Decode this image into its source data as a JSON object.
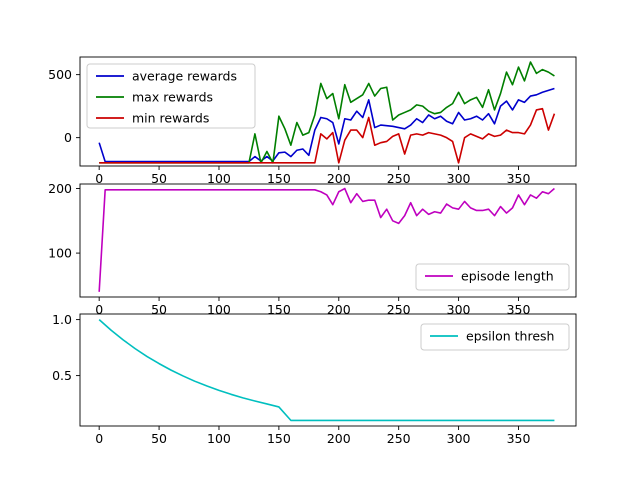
{
  "chart_data": [
    {
      "type": "line",
      "xlim": [
        -16,
        398
      ],
      "ylim": [
        -225,
        640
      ],
      "xticks": [
        0,
        50,
        100,
        150,
        200,
        250,
        300,
        350
      ],
      "yticks": [
        0,
        500
      ],
      "legend_position": "upper-left",
      "series": [
        {
          "name": "average rewards",
          "color": "#0000cc",
          "x": [
            0,
            5,
            10,
            15,
            20,
            25,
            30,
            35,
            40,
            45,
            50,
            55,
            60,
            65,
            70,
            75,
            80,
            85,
            90,
            95,
            100,
            105,
            110,
            115,
            120,
            125,
            130,
            135,
            140,
            145,
            150,
            155,
            160,
            165,
            170,
            175,
            180,
            185,
            190,
            195,
            200,
            205,
            210,
            215,
            220,
            225,
            230,
            235,
            240,
            245,
            250,
            255,
            260,
            265,
            270,
            275,
            280,
            285,
            290,
            295,
            300,
            305,
            310,
            315,
            320,
            325,
            330,
            335,
            340,
            345,
            350,
            355,
            360,
            365,
            370,
            375,
            380
          ],
          "y": [
            -40,
            -190,
            -190,
            -190,
            -190,
            -190,
            -190,
            -190,
            -190,
            -190,
            -190,
            -190,
            -190,
            -190,
            -190,
            -190,
            -190,
            -190,
            -190,
            -190,
            -190,
            -190,
            -190,
            -190,
            -190,
            -190,
            -150,
            -185,
            -150,
            -185,
            -120,
            -115,
            -150,
            -100,
            -90,
            -140,
            60,
            160,
            150,
            120,
            -50,
            150,
            140,
            210,
            160,
            300,
            80,
            100,
            95,
            90,
            80,
            70,
            100,
            150,
            120,
            180,
            150,
            170,
            130,
            110,
            200,
            140,
            150,
            170,
            140,
            190,
            110,
            250,
            290,
            220,
            300,
            280,
            330,
            340,
            360,
            375,
            390
          ]
        },
        {
          "name": "max rewards",
          "color": "#007f00",
          "x": [
            0,
            5,
            10,
            15,
            20,
            25,
            30,
            35,
            40,
            45,
            50,
            55,
            60,
            65,
            70,
            75,
            80,
            85,
            90,
            95,
            100,
            105,
            110,
            115,
            120,
            125,
            130,
            135,
            140,
            145,
            150,
            155,
            160,
            165,
            170,
            175,
            180,
            185,
            190,
            195,
            200,
            205,
            210,
            215,
            220,
            225,
            230,
            235,
            240,
            245,
            250,
            255,
            260,
            265,
            270,
            275,
            280,
            285,
            290,
            295,
            300,
            305,
            310,
            315,
            320,
            325,
            330,
            335,
            340,
            345,
            350,
            355,
            360,
            365,
            370,
            375,
            380
          ],
          "y": [
            -200,
            -200,
            -200,
            -200,
            -200,
            -200,
            -200,
            -200,
            -200,
            -200,
            -200,
            -200,
            -200,
            -200,
            -200,
            -200,
            -200,
            -200,
            -200,
            -200,
            -200,
            -200,
            -200,
            -200,
            -200,
            -200,
            30,
            -200,
            -110,
            -200,
            170,
            70,
            -60,
            120,
            20,
            40,
            180,
            430,
            310,
            350,
            150,
            420,
            280,
            310,
            340,
            430,
            330,
            390,
            400,
            140,
            180,
            200,
            220,
            260,
            250,
            210,
            190,
            200,
            240,
            270,
            360,
            270,
            300,
            320,
            240,
            380,
            220,
            350,
            520,
            420,
            560,
            450,
            600,
            510,
            540,
            520,
            490
          ]
        },
        {
          "name": "min rewards",
          "color": "#cc0000",
          "x": [
            0,
            5,
            10,
            15,
            20,
            25,
            30,
            35,
            40,
            45,
            50,
            55,
            60,
            65,
            70,
            75,
            80,
            85,
            90,
            95,
            100,
            105,
            110,
            115,
            120,
            125,
            130,
            135,
            140,
            145,
            150,
            155,
            160,
            165,
            170,
            175,
            180,
            185,
            190,
            195,
            200,
            205,
            210,
            215,
            220,
            225,
            230,
            235,
            240,
            245,
            250,
            255,
            260,
            265,
            270,
            275,
            280,
            285,
            290,
            295,
            300,
            305,
            310,
            315,
            320,
            325,
            330,
            335,
            340,
            345,
            350,
            355,
            360,
            365,
            370,
            375,
            380
          ],
          "y": [
            -200,
            -200,
            -200,
            -200,
            -200,
            -200,
            -200,
            -200,
            -200,
            -200,
            -200,
            -200,
            -200,
            -200,
            -200,
            -200,
            -200,
            -200,
            -200,
            -200,
            -200,
            -200,
            -200,
            -200,
            -200,
            -200,
            -200,
            -200,
            -200,
            -200,
            -200,
            -200,
            -200,
            -200,
            -200,
            -200,
            -200,
            30,
            -10,
            40,
            -200,
            -20,
            60,
            60,
            0,
            160,
            -60,
            -40,
            -30,
            10,
            30,
            -130,
            20,
            30,
            20,
            40,
            30,
            20,
            0,
            -30,
            -200,
            0,
            30,
            10,
            -10,
            30,
            10,
            20,
            60,
            40,
            40,
            30,
            100,
            220,
            230,
            60,
            190
          ]
        }
      ]
    },
    {
      "type": "line",
      "xlim": [
        -16,
        398
      ],
      "ylim": [
        32,
        207
      ],
      "xticks": [
        0,
        50,
        100,
        150,
        200,
        250,
        300,
        350
      ],
      "yticks": [
        100,
        200
      ],
      "legend_position": "lower-right",
      "series": [
        {
          "name": "episode length",
          "color": "#bf00bf",
          "x": [
            0,
            5,
            10,
            15,
            20,
            25,
            30,
            35,
            40,
            45,
            50,
            55,
            60,
            65,
            70,
            75,
            80,
            85,
            90,
            95,
            100,
            105,
            110,
            115,
            120,
            125,
            130,
            135,
            140,
            145,
            150,
            155,
            160,
            165,
            170,
            175,
            180,
            185,
            190,
            195,
            200,
            205,
            210,
            215,
            220,
            225,
            230,
            235,
            240,
            245,
            250,
            255,
            260,
            265,
            270,
            275,
            280,
            285,
            290,
            295,
            300,
            305,
            310,
            315,
            320,
            325,
            330,
            335,
            340,
            345,
            350,
            355,
            360,
            365,
            370,
            375,
            380
          ],
          "y": [
            40,
            198,
            198,
            198,
            198,
            198,
            198,
            198,
            198,
            198,
            198,
            198,
            198,
            198,
            198,
            198,
            198,
            198,
            198,
            198,
            198,
            198,
            198,
            198,
            198,
            198,
            198,
            198,
            198,
            198,
            198,
            198,
            198,
            198,
            198,
            198,
            198,
            195,
            190,
            175,
            195,
            200,
            178,
            192,
            180,
            182,
            182,
            155,
            168,
            150,
            146,
            158,
            178,
            158,
            168,
            160,
            164,
            162,
            176,
            170,
            168,
            180,
            170,
            166,
            166,
            168,
            158,
            172,
            162,
            170,
            190,
            175,
            190,
            185,
            195,
            192,
            200
          ]
        }
      ]
    },
    {
      "type": "line",
      "xlim": [
        -16,
        398
      ],
      "ylim": [
        0.05,
        1.05
      ],
      "xticks": [
        0,
        50,
        100,
        150,
        200,
        250,
        300,
        350
      ],
      "yticks": [
        0.5,
        1.0
      ],
      "ytick_labels": [
        "0.5",
        "1.0"
      ],
      "legend_position": "upper-right",
      "series": [
        {
          "name": "epsilon thresh",
          "color": "#00bfbf",
          "x": [
            0,
            10,
            20,
            30,
            40,
            50,
            60,
            70,
            80,
            90,
            100,
            110,
            120,
            130,
            140,
            150,
            160,
            170,
            180,
            190,
            200,
            210,
            220,
            230,
            240,
            250,
            260,
            270,
            280,
            290,
            300,
            310,
            320,
            330,
            340,
            350,
            360,
            370,
            380
          ],
          "y": [
            1.0,
            0.905,
            0.819,
            0.741,
            0.67,
            0.607,
            0.549,
            0.497,
            0.449,
            0.407,
            0.368,
            0.333,
            0.301,
            0.273,
            0.247,
            0.22,
            0.1,
            0.1,
            0.1,
            0.1,
            0.1,
            0.1,
            0.1,
            0.1,
            0.1,
            0.1,
            0.1,
            0.1,
            0.1,
            0.1,
            0.1,
            0.1,
            0.1,
            0.1,
            0.1,
            0.1,
            0.1,
            0.1,
            0.1
          ]
        }
      ]
    }
  ]
}
